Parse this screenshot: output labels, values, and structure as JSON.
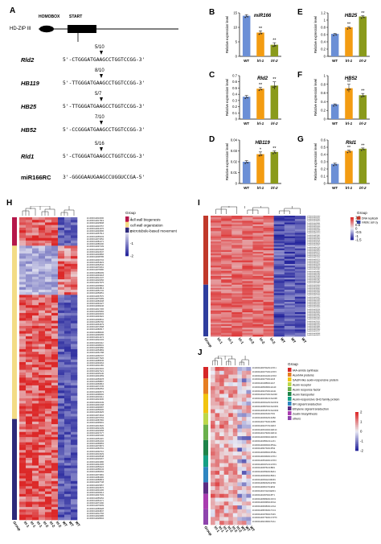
{
  "panels": {
    "A": "A",
    "B": "B",
    "C": "C",
    "D": "D",
    "E": "E",
    "F": "F",
    "G": "G",
    "H": "H",
    "I": "I",
    "J": "J"
  },
  "panel_a": {
    "track_label": "HD-ZIP III",
    "homobox_label": "HOMOBOX",
    "start_label": "START",
    "rows": [
      {
        "gene": "Rld2",
        "ratio": "5/10",
        "seq": "5'-CTGGGATGAAGCCTGGTCCGG-3'"
      },
      {
        "gene": "HB119",
        "ratio": "8/10",
        "seq": "5'-TTGGGATGAAGCCTGGTCCGG-3'"
      },
      {
        "gene": "HB25",
        "ratio": "5/7",
        "seq": "5'-TTGGGATGAAGCCTGGTCCGG-3'"
      },
      {
        "gene": "HB52",
        "ratio": "7/10",
        "seq": "5'-CCGGGATGAAGCCTGGTCCGG-3'"
      },
      {
        "gene": "Rld1",
        "ratio": "5/16",
        "seq": "5'-CTGGGATGAAGCCTGGTCCGG-3'"
      }
    ],
    "mirna": {
      "name": "miR166RC",
      "seq": "3'-GGGGAAUGAAGCCUGGUCCGA-5'"
    }
  },
  "chart_data": [
    {
      "panel": "B",
      "type": "bar",
      "title": "miR166",
      "ylabel": "Relative expression level",
      "categories": [
        "WT",
        "lrl-1",
        "lrl-2"
      ],
      "values": [
        14,
        8.2,
        4
      ],
      "errors": [
        0.4,
        0.6,
        0.7
      ],
      "sig": [
        "",
        "**",
        "**"
      ],
      "ylim": [
        0,
        15
      ],
      "yticks": [
        0,
        5,
        10,
        15
      ],
      "colors": [
        "#6b8fd6",
        "#f39c12",
        "#8a9a1b"
      ]
    },
    {
      "panel": "E",
      "type": "bar",
      "title": "HB25",
      "ylabel": "Relative expression level",
      "categories": [
        "WT",
        "lrl-1",
        "lrl-2"
      ],
      "values": [
        0.62,
        0.8,
        1.1
      ],
      "errors": [
        0.01,
        0.02,
        0.02
      ],
      "sig": [
        "",
        "**",
        "**"
      ],
      "ylim": [
        0,
        1.2
      ],
      "yticks": [
        0,
        0.2,
        0.4,
        0.6,
        0.8,
        1.0,
        1.2
      ],
      "colors": [
        "#6b8fd6",
        "#f39c12",
        "#8a9a1b"
      ]
    },
    {
      "panel": "C",
      "type": "bar",
      "title": "Rld2",
      "ylabel": "Relative expression level",
      "categories": [
        "WT",
        "lrl-1",
        "lrl-2"
      ],
      "values": [
        0.36,
        0.49,
        0.54
      ],
      "errors": [
        0.02,
        0.02,
        0.06
      ],
      "sig": [
        "",
        "**",
        "**"
      ],
      "ylim": [
        0,
        0.7
      ],
      "yticks": [
        0,
        0.1,
        0.2,
        0.3,
        0.4,
        0.5,
        0.6,
        0.7
      ],
      "colors": [
        "#6b8fd6",
        "#f39c12",
        "#8a9a1b"
      ]
    },
    {
      "panel": "F",
      "type": "bar",
      "title": "HB52",
      "ylabel": "Relative expression level",
      "categories": [
        "WT",
        "lrl-1",
        "lrl-2"
      ],
      "values": [
        0.34,
        0.71,
        0.55
      ],
      "errors": [
        0.01,
        0.09,
        0.04
      ],
      "sig": [
        "",
        "**",
        "**"
      ],
      "ylim": [
        0,
        1.0
      ],
      "yticks": [
        0,
        0.2,
        0.4,
        0.6,
        0.8,
        1.0
      ],
      "colors": [
        "#6b8fd6",
        "#f39c12",
        "#8a9a1b"
      ]
    },
    {
      "panel": "D",
      "type": "bar",
      "title": "HB119",
      "ylabel": "Relative expression level",
      "categories": [
        "WT",
        "lrl-1",
        "lrl-2"
      ],
      "values": [
        0.02,
        0.027,
        0.029
      ],
      "errors": [
        0.001,
        0.002,
        0.001
      ],
      "sig": [
        "",
        "*",
        "**"
      ],
      "ylim": [
        0,
        0.04
      ],
      "yticks": [
        0,
        0.01,
        0.02,
        0.03,
        0.04
      ],
      "colors": [
        "#6b8fd6",
        "#f39c12",
        "#8a9a1b"
      ]
    },
    {
      "panel": "G",
      "type": "bar",
      "title": "Rld1",
      "ylabel": "Relative expression level",
      "categories": [
        "WT",
        "lrl-1",
        "lrl-2"
      ],
      "values": [
        0.27,
        0.45,
        0.48
      ],
      "errors": [
        0.01,
        0.01,
        0.01
      ],
      "sig": [
        "",
        "**",
        "**"
      ],
      "ylim": [
        0,
        0.6
      ],
      "yticks": [
        0,
        0.1,
        0.2,
        0.3,
        0.4,
        0.5,
        0.6
      ],
      "colors": [
        "#6b8fd6",
        "#f39c12",
        "#8a9a1b"
      ]
    },
    {
      "panel": "H",
      "type": "heatmap",
      "columns": [
        "lrl-1",
        "lrl-1",
        "lrl-1",
        "lrl-2",
        "lrl-2",
        "lrl-2",
        "WT",
        "WT",
        "WT"
      ],
      "annotation_label": "Group",
      "color_scale": {
        "min": -2,
        "max": 1,
        "ticks": [
          1,
          0,
          -1,
          -2
        ]
      },
      "legend_title": "Group",
      "groups": [
        {
          "name": "cell wall biogenesis",
          "color": "#b5174a"
        },
        {
          "name": "cell wall organization",
          "color": "#f3dc86"
        },
        {
          "name": "microtubule-based movement",
          "color": "#2d2a7a"
        }
      ],
      "row_groups": [
        {
          "group": "cell wall biogenesis",
          "rows": 11
        },
        {
          "group": "cell wall organization",
          "rows": 67
        },
        {
          "group": "microtubule-based movement",
          "rows": 39
        }
      ]
    },
    {
      "panel": "I",
      "type": "heatmap",
      "columns": [
        "lrl-1",
        "lrl-1",
        "lrl-1",
        "lrl-2",
        "lrl-2",
        "lrl-2",
        "WT",
        "WT",
        "WT"
      ],
      "annotation_label": "Group",
      "color_scale": {
        "min": -1.5,
        "max": 1.5,
        "ticks": [
          1.5,
          1,
          0.5,
          0,
          -0.5,
          -1,
          -1.5
        ]
      },
      "legend_title": "Group",
      "groups": [
        {
          "name": "DNA replication",
          "color": "#c0392b"
        },
        {
          "name": "mitotic cell cycle",
          "color": "#2f3e9e"
        }
      ],
      "row_groups": [
        {
          "group": "DNA replication",
          "rows": 40
        },
        {
          "group": "mitotic cell cycle",
          "rows": 30
        }
      ]
    },
    {
      "panel": "J",
      "type": "heatmap",
      "columns": [
        "lrl-1",
        "lrl-1",
        "lrl-1",
        "lrl-2",
        "lrl-2",
        "lrl-2",
        "WT",
        "WT",
        "WT"
      ],
      "annotation_label": "Group",
      "color_scale": {
        "min": -2,
        "max": 2,
        "ticks": [
          2,
          1,
          0,
          -1,
          -2
        ]
      },
      "legend_title": "Group",
      "groups": [
        {
          "name": "IAA-amido synthase",
          "color": "#d62728"
        },
        {
          "name": "Aux/IAA proteins",
          "color": "#e67e22"
        },
        {
          "name": "SAUR-like auxin-responsive protein",
          "color": "#f1c40f"
        },
        {
          "name": "Auxin receptor",
          "color": "#bcd84a"
        },
        {
          "name": "Auxin response factor",
          "color": "#6ab04c"
        },
        {
          "name": "Auxin transporter",
          "color": "#1e8449"
        },
        {
          "name": "Auxin-responsive GH3 family protein",
          "color": "#16a085"
        },
        {
          "name": "BR signal transduction",
          "color": "#2e86c1"
        },
        {
          "name": "Ethylene signal transduction",
          "color": "#5b2c83"
        },
        {
          "name": "Zeatin biosynthesis",
          "color": "#a93cb0"
        },
        {
          "name": "others",
          "color": "#8e44ad"
        }
      ],
      "row_groups": [
        {
          "group": "IAA-amido synthase",
          "rows": 3
        },
        {
          "group": "Aux/IAA proteins",
          "rows": 4
        },
        {
          "group": "SAUR-like auxin-responsive protein",
          "rows": 5
        },
        {
          "group": "Auxin receptor",
          "rows": 3
        },
        {
          "group": "Auxin response factor",
          "rows": 4
        },
        {
          "group": "Auxin transporter",
          "rows": 4
        },
        {
          "group": "Auxin-responsive GH3 family protein",
          "rows": 3
        },
        {
          "group": "BR signal transduction",
          "rows": 4
        },
        {
          "group": "Ethylene signal transduction",
          "rows": 3
        },
        {
          "group": "Zeatin biosynthesis",
          "rows": 4
        },
        {
          "group": "others",
          "rows": 4
        }
      ]
    }
  ],
  "gene_prefix": "Zm00001d0",
  "j_genes": [
    "Zm00001d007602ZmGH3.1",
    "Zm00001d023770ZmGH3.5",
    "Zm00001d016414ZmGH3.8",
    "Zm00001d032779ZmIAA5",
    "Zm00001d014886ZmIAA7",
    "Zm00001d005268ZmIAA19",
    "Zm00001d032479ZmIAA21",
    "Zm00001d012270ZmSAUR2",
    "Zm00001d023461ZmSAUR6",
    "Zm00001d034612ZmSAUR12",
    "Zm00001d038976ZmSAUR31",
    "Zm00001d039187ZmSAUR40",
    "Zm00001d020234ZmTIR1",
    "Zm00001d040632ZmAFB2",
    "Zm00001d017764ZmAFB5",
    "Zm00001d032477ZmARF3",
    "Zm00001d033416ZmARF10",
    "Zm00001d014790ZmARF14",
    "Zm00001d043096ZmARF30",
    "Zm00001d018501ZmLAX1",
    "Zm00001d023846ZmPIN1a",
    "Zm00001d052730ZmPIN2",
    "Zm00001d034866ZmPIN5a",
    "Zm00001d004969ZmGH3.2",
    "Zm00001d035429ZmGH3.6",
    "Zm00001d004971ZmGH3.9",
    "Zm00001d048751ZmBRI1",
    "Zm00001d040590ZmBAK1",
    "Zm00001d030625ZmBSK1",
    "Zm00001d033911ZmBZR1",
    "Zm00001d038232ZmETR2",
    "Zm00001d026617ZmEIN2",
    "Zm00001d017211ZmERF1",
    "Zm00001d010976ZmIPT1",
    "Zm00001d036890ZmCKX1",
    "Zm00001d034995ZmZOG1",
    "Zm00001d026383ZmLOG1",
    "Zm00001d051560ZmYUC1",
    "Zm00001d019766ZmTAR1",
    "Zm00001d037790ZmCYP79",
    "Zm00001d002168ZmTAA1"
  ]
}
